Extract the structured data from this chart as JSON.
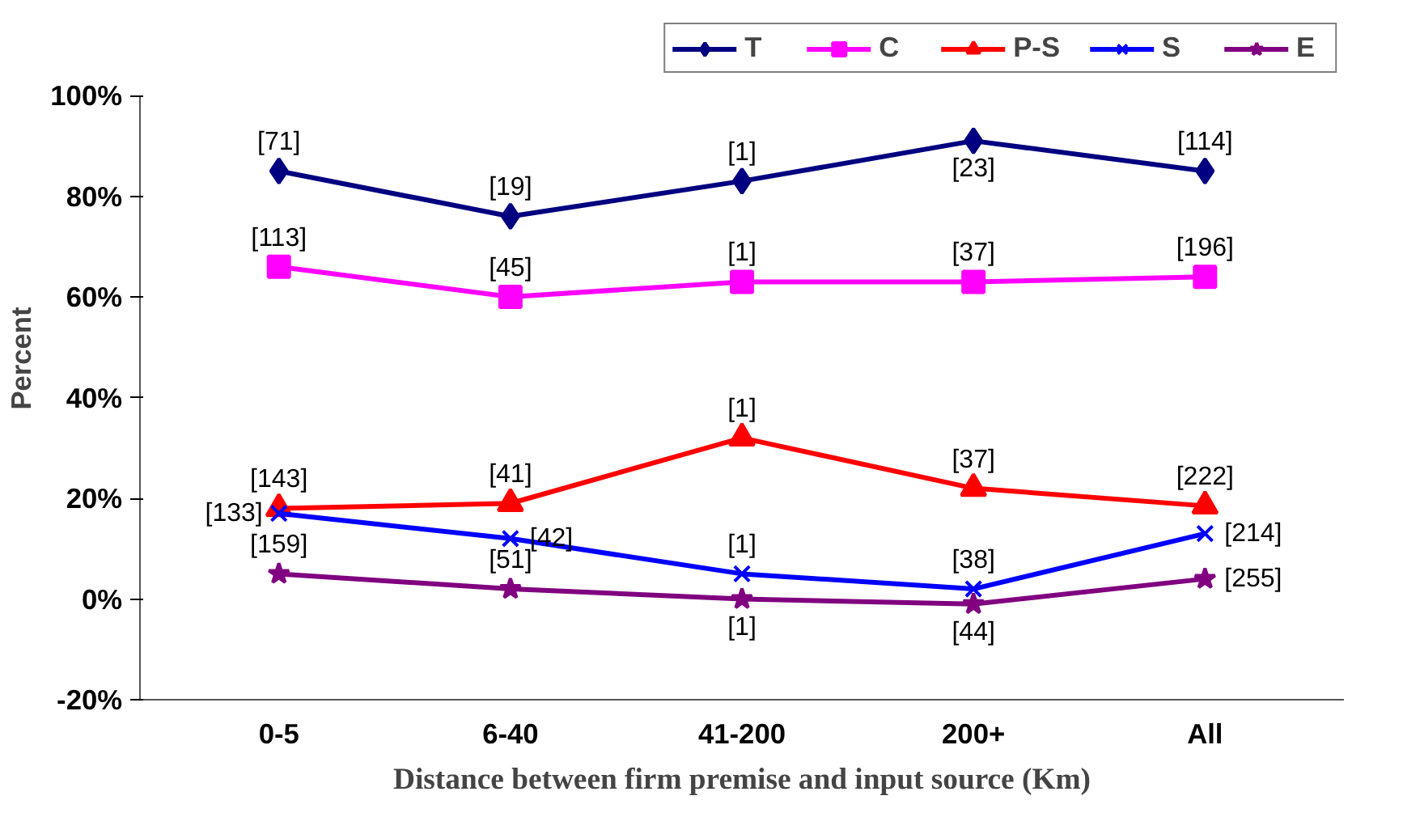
{
  "chart_data": {
    "type": "line",
    "xlabel": "Distance between firm premise and input source (Km)",
    "ylabel": "Percent",
    "categories": [
      "0-5",
      "6-40",
      "41-200",
      "200+",
      "All"
    ],
    "ylim": [
      -20,
      100
    ],
    "yticks": [
      {
        "value": -20,
        "label": "-20%"
      },
      {
        "value": 0,
        "label": "0%"
      },
      {
        "value": 20,
        "label": "20%"
      },
      {
        "value": 40,
        "label": "40%"
      },
      {
        "value": 60,
        "label": "60%"
      },
      {
        "value": 80,
        "label": "80%"
      },
      {
        "value": 100,
        "label": "100%"
      }
    ],
    "grid": false,
    "legend": "top right",
    "series": [
      {
        "name": "T",
        "color": "#000080",
        "marker": "diamond",
        "values": [
          85,
          76,
          83,
          91,
          85
        ]
      },
      {
        "name": "C",
        "color": "#ff00ff",
        "marker": "square",
        "values": [
          66,
          60,
          63,
          63,
          64
        ]
      },
      {
        "name": "P-S",
        "color": "#ff0000",
        "marker": "triangle",
        "values": [
          18,
          19,
          32,
          22,
          18.5
        ]
      },
      {
        "name": "S",
        "color": "#0000ff",
        "marker": "cross",
        "values": [
          17,
          12,
          5,
          2,
          13
        ]
      },
      {
        "name": "E",
        "color": "#800080",
        "marker": "star",
        "values": [
          5,
          2,
          0,
          -1,
          4
        ]
      }
    ],
    "annotations": [
      {
        "text": "[71]",
        "x": "0-5",
        "y": 85
      },
      {
        "text": "[19]",
        "x": "6-40",
        "y": 76
      },
      {
        "text": "[1]",
        "x": "41-200",
        "y": 83
      },
      {
        "text": "[23]",
        "x": "200+",
        "y": 91
      },
      {
        "text": "[114]",
        "x": "All",
        "y": 85
      },
      {
        "text": "[113]",
        "x": "0-5",
        "y": 66
      },
      {
        "text": "[45]",
        "x": "6-40",
        "y": 60
      },
      {
        "text": "[1]",
        "x": "41-200",
        "y": 63
      },
      {
        "text": "[37]",
        "x": "200+",
        "y": 63
      },
      {
        "text": "[196]",
        "x": "All",
        "y": 64
      },
      {
        "text": "[143]",
        "x": "0-5",
        "y": 18
      },
      {
        "text": "[41]",
        "x": "6-40",
        "y": 19
      },
      {
        "text": "[1]",
        "x": "41-200",
        "y": 32
      },
      {
        "text": "[37]",
        "x": "200+",
        "y": 22
      },
      {
        "text": "[222]",
        "x": "All",
        "y": 18.5
      },
      {
        "text": "[133]",
        "x": "0-5",
        "y": 17
      },
      {
        "text": "[42]",
        "x": "6-40",
        "y": 12
      },
      {
        "text": "[1]",
        "x": "41-200",
        "y": 5
      },
      {
        "text": "[38]",
        "x": "200+",
        "y": 2
      },
      {
        "text": "[214]",
        "x": "All",
        "y": 13
      },
      {
        "text": "[159]",
        "x": "0-5",
        "y": 5
      },
      {
        "text": "[51]",
        "x": "6-40",
        "y": 2
      },
      {
        "text": "[1]",
        "x": "41-200",
        "y": 0
      },
      {
        "text": "[44]",
        "x": "200+",
        "y": -1
      },
      {
        "text": "[255]",
        "x": "All",
        "y": 4
      }
    ]
  }
}
